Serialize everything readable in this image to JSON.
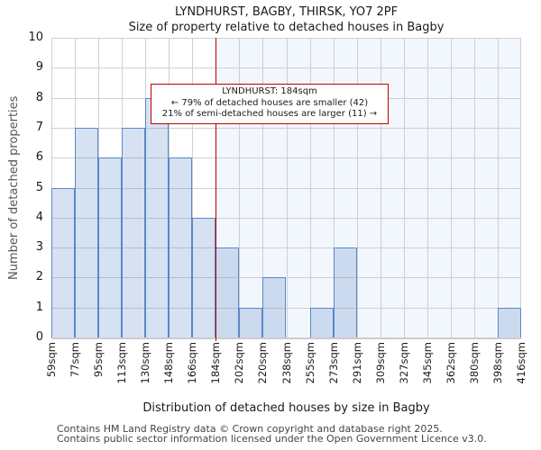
{
  "chart_data": {
    "type": "bar",
    "title": "LYNDHURST, BAGBY, THIRSK, YO7 2PF",
    "subtitle": "Size of property relative to detached houses in Bagby",
    "categories": [
      "59sqm",
      "77sqm",
      "95sqm",
      "113sqm",
      "130sqm",
      "148sqm",
      "166sqm",
      "184sqm",
      "202sqm",
      "220sqm",
      "238sqm",
      "255sqm",
      "273sqm",
      "291sqm",
      "309sqm",
      "327sqm",
      "345sqm",
      "362sqm",
      "380sqm",
      "398sqm",
      "416sqm"
    ],
    "values": [
      5,
      7,
      6,
      7,
      8,
      6,
      4,
      3,
      1,
      2,
      0,
      1,
      3,
      0,
      0,
      0,
      0,
      0,
      0,
      1
    ],
    "xlabel": "Distribution of detached houses by size in Bagby",
    "ylabel": "Number of detached properties",
    "ylim": [
      0,
      10
    ],
    "yticks": [
      0,
      1,
      2,
      3,
      4,
      5,
      6,
      7,
      8,
      9,
      10
    ],
    "grid": true,
    "legend": null,
    "marker": {
      "category_index": 7,
      "label": "184sqm"
    },
    "annotation_lines": [
      "LYNDHURST: 184sqm",
      "← 79% of detached houses are smaller (42)",
      "21% of semi-detached houses are larger (11) →"
    ],
    "colors": {
      "bar_fill": "rgba(91,136,199,0.25)",
      "bar_edge": "#5b88c7",
      "marker_line": "#c00000",
      "grid_line": "#cfcfcf",
      "right_tint": "#f2f6fd",
      "annotation_border": "#c00000"
    }
  },
  "footer": {
    "line1": "Contains HM Land Registry data © Crown copyright and database right 2025.",
    "line2": "Contains public sector information licensed under the Open Government Licence v3.0."
  }
}
